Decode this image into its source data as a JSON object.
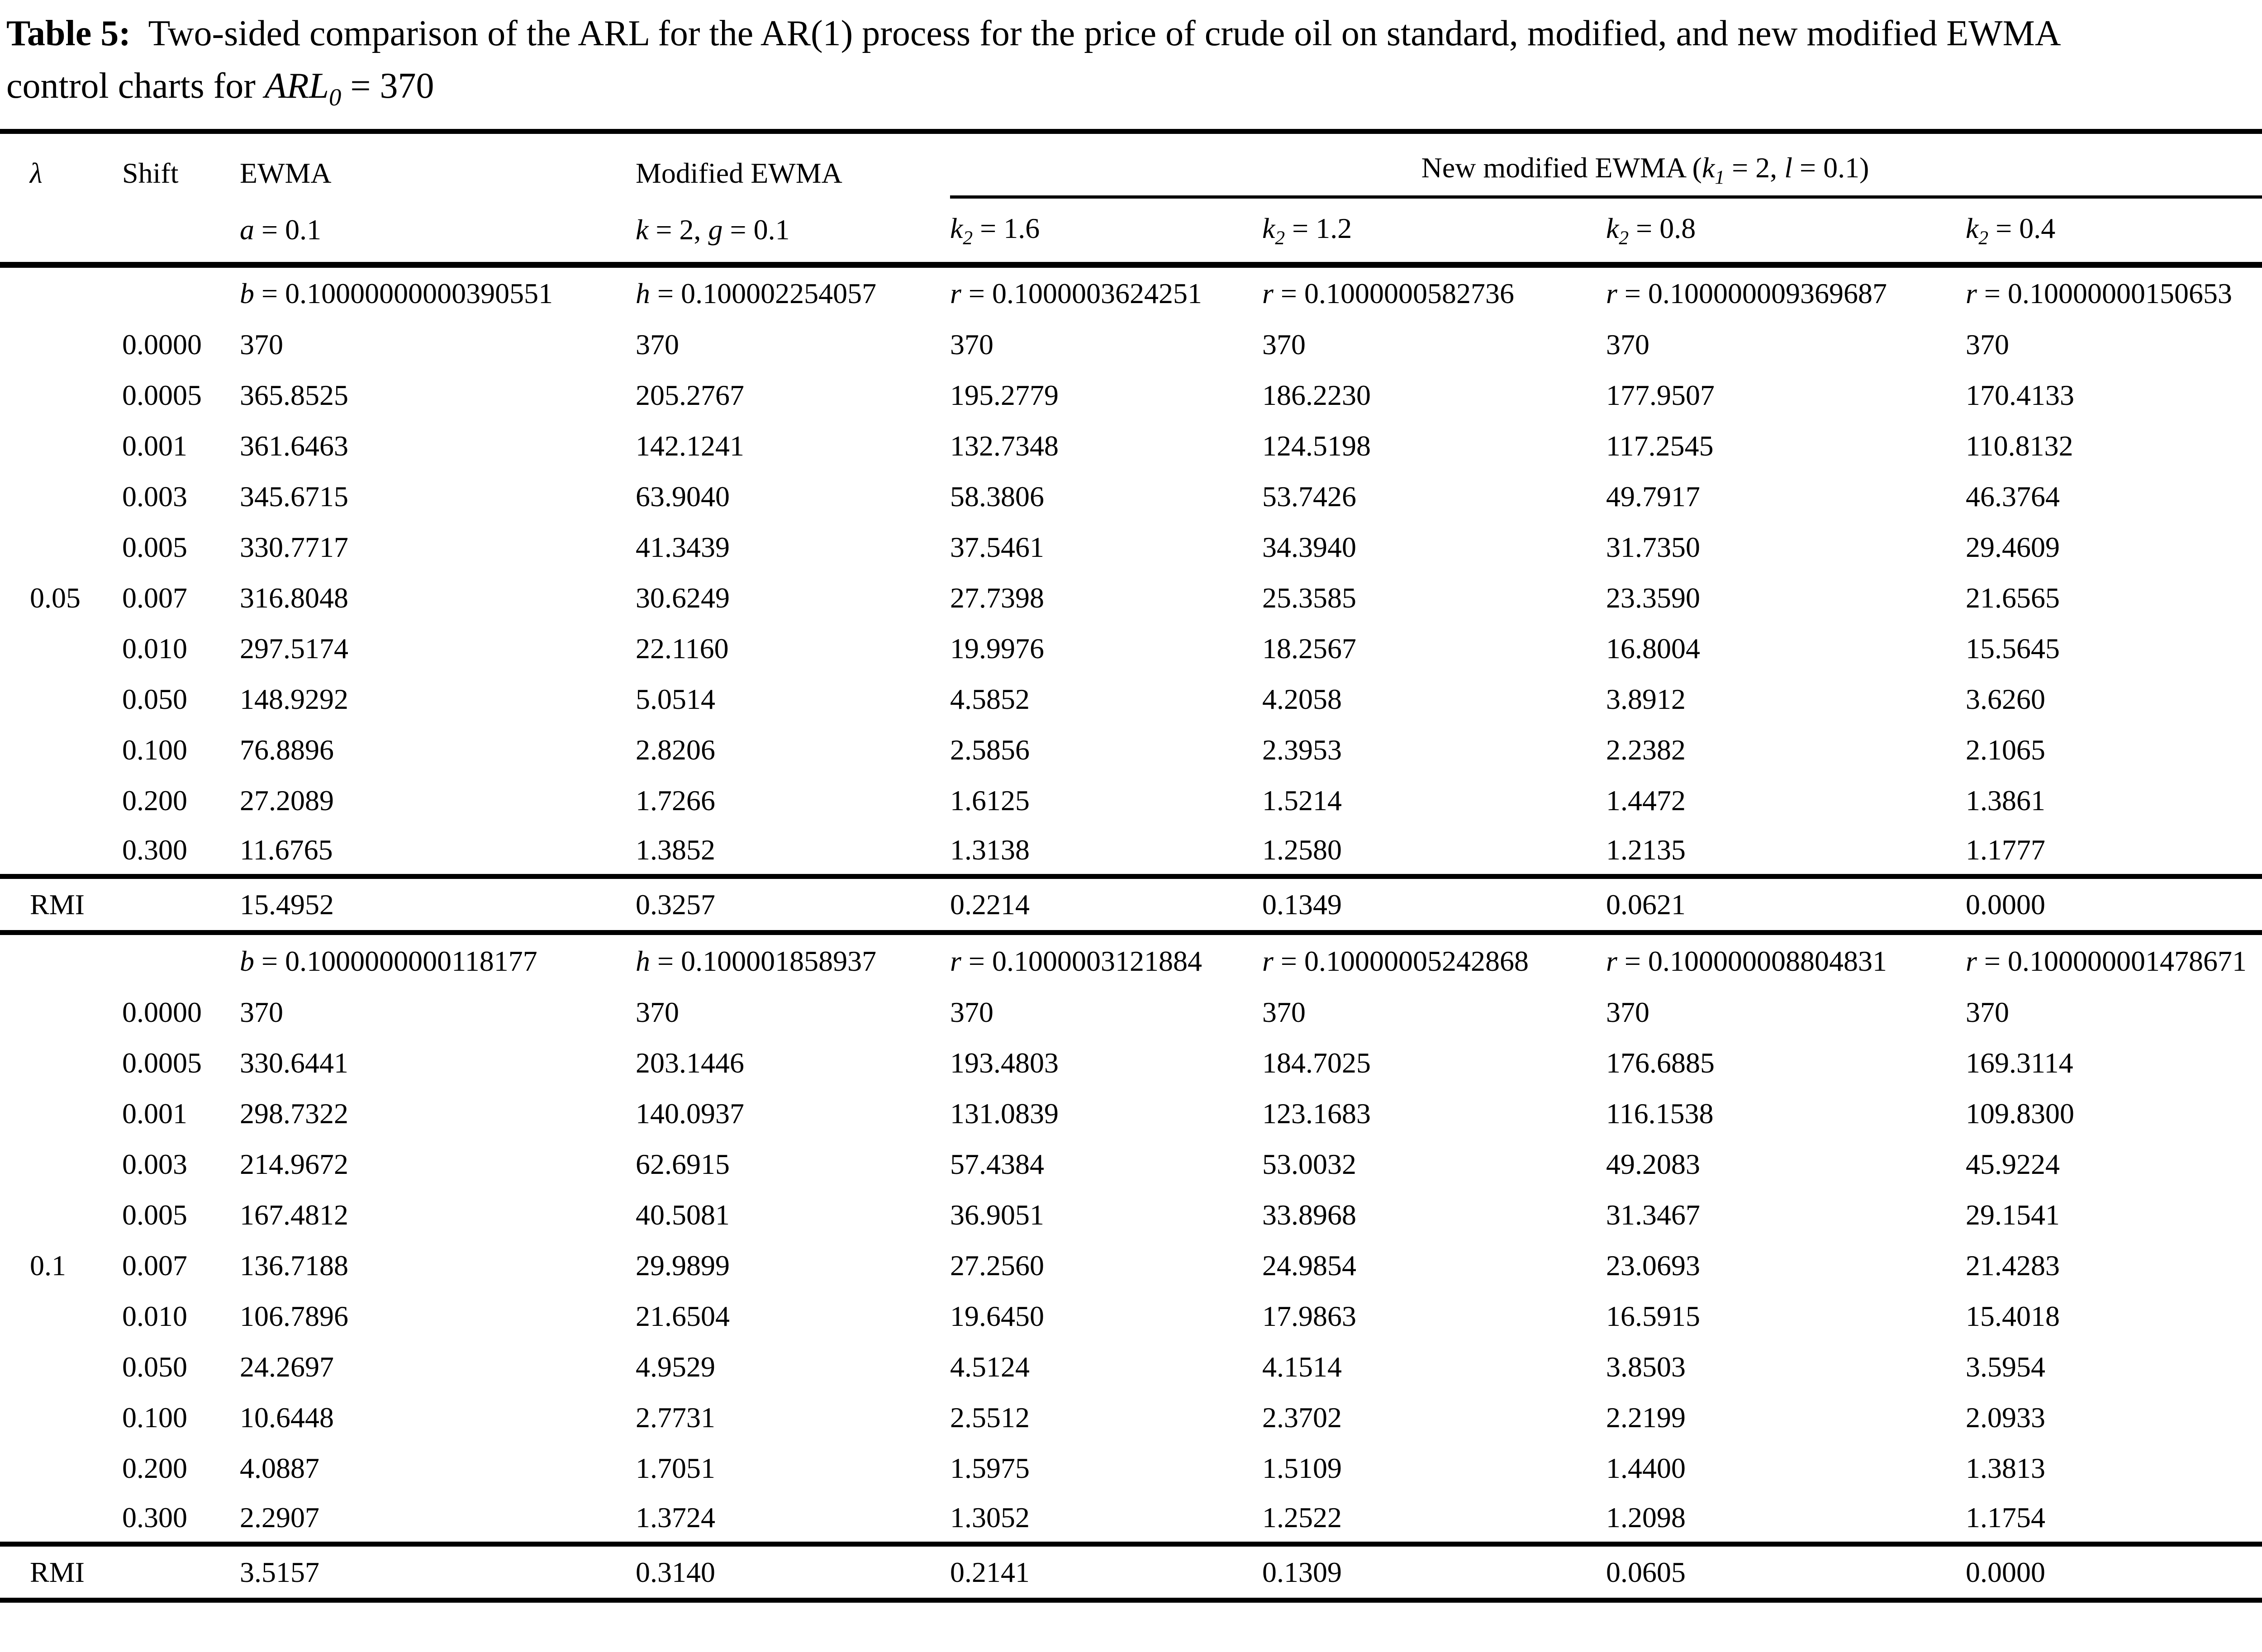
{
  "title": {
    "segments": [
      {
        "t": "Table 5:",
        "b": true
      },
      {
        "t": "  Two-sided comparison of the ARL for the AR(1) process for the price of crude oil on standard, modified, and new modified EWMA"
      },
      {
        "br": true
      },
      {
        "t": "control charts for "
      },
      {
        "t": "ARL",
        "i": true
      },
      {
        "t": "0",
        "i": true,
        "sub": true
      },
      {
        "t": " = 370"
      }
    ]
  },
  "header": {
    "lambda": [
      {
        "t": "λ",
        "i": true
      }
    ],
    "shift": "Shift",
    "ewma": "EWMA",
    "modified": "Modified EWMA",
    "new_modified": [
      {
        "t": "New modified EWMA ("
      },
      {
        "t": "k",
        "i": true
      },
      {
        "t": "1",
        "i": true,
        "sub": true
      },
      {
        "t": " = 2, "
      },
      {
        "t": "l",
        "i": true
      },
      {
        "t": " = 0.1)"
      }
    ],
    "sub": {
      "a": [
        {
          "t": "a",
          "i": true
        },
        {
          "t": " = 0.1"
        }
      ],
      "kg": [
        {
          "t": "k",
          "i": true
        },
        {
          "t": " = 2, "
        },
        {
          "t": "g",
          "i": true
        },
        {
          "t": " = 0.1"
        }
      ],
      "k2_16": [
        {
          "t": "k",
          "i": true
        },
        {
          "t": "2",
          "i": true,
          "sub": true
        },
        {
          "t": " = 1.6"
        }
      ],
      "k2_12": [
        {
          "t": "k",
          "i": true
        },
        {
          "t": "2",
          "i": true,
          "sub": true
        },
        {
          "t": " = 1.2"
        }
      ],
      "k2_08": [
        {
          "t": "k",
          "i": true
        },
        {
          "t": "2",
          "i": true,
          "sub": true
        },
        {
          "t": " = 0.8"
        }
      ],
      "k2_04": [
        {
          "t": "k",
          "i": true
        },
        {
          "t": "2",
          "i": true,
          "sub": true
        },
        {
          "t": " = 0.4"
        }
      ]
    }
  },
  "blocks": [
    {
      "lambda_value": "0.05",
      "params": [
        [
          {
            "t": "b",
            "i": true
          },
          {
            "t": " = 0.10000000000390551"
          }
        ],
        [
          {
            "t": "h",
            "i": true
          },
          {
            "t": " = 0.100002254057"
          }
        ],
        [
          {
            "t": "r",
            "i": true
          },
          {
            "t": " = 0.1000003624251"
          }
        ],
        [
          {
            "t": "r",
            "i": true
          },
          {
            "t": " = 0.1000000582736"
          }
        ],
        [
          {
            "t": "r",
            "i": true
          },
          {
            "t": " = 0.100000009369687"
          }
        ],
        [
          {
            "t": "r",
            "i": true
          },
          {
            "t": " = 0.10000000150653"
          }
        ]
      ],
      "rows": [
        {
          "lambda": "",
          "shift": "0.0000",
          "values": [
            "370",
            "370",
            "370",
            "370",
            "370",
            "370"
          ]
        },
        {
          "lambda": "",
          "shift": "0.0005",
          "values": [
            "365.8525",
            "205.2767",
            "195.2779",
            "186.2230",
            "177.9507",
            "170.4133"
          ]
        },
        {
          "lambda": "",
          "shift": "0.001",
          "values": [
            "361.6463",
            "142.1241",
            "132.7348",
            "124.5198",
            "117.2545",
            "110.8132"
          ]
        },
        {
          "lambda": "",
          "shift": "0.003",
          "values": [
            "345.6715",
            "63.9040",
            "58.3806",
            "53.7426",
            "49.7917",
            "46.3764"
          ]
        },
        {
          "lambda": "",
          "shift": "0.005",
          "values": [
            "330.7717",
            "41.3439",
            "37.5461",
            "34.3940",
            "31.7350",
            "29.4609"
          ]
        },
        {
          "lambda": "0.05",
          "shift": "0.007",
          "values": [
            "316.8048",
            "30.6249",
            "27.7398",
            "25.3585",
            "23.3590",
            "21.6565"
          ]
        },
        {
          "lambda": "",
          "shift": "0.010",
          "values": [
            "297.5174",
            "22.1160",
            "19.9976",
            "18.2567",
            "16.8004",
            "15.5645"
          ]
        },
        {
          "lambda": "",
          "shift": "0.050",
          "values": [
            "148.9292",
            "5.0514",
            "4.5852",
            "4.2058",
            "3.8912",
            "3.6260"
          ]
        },
        {
          "lambda": "",
          "shift": "0.100",
          "values": [
            "76.8896",
            "2.8206",
            "2.5856",
            "2.3953",
            "2.2382",
            "2.1065"
          ]
        },
        {
          "lambda": "",
          "shift": "0.200",
          "values": [
            "27.2089",
            "1.7266",
            "1.6125",
            "1.5214",
            "1.4472",
            "1.3861"
          ]
        },
        {
          "lambda": "",
          "shift": "0.300",
          "values": [
            "11.6765",
            "1.3852",
            "1.3138",
            "1.2580",
            "1.2135",
            "1.1777"
          ]
        }
      ],
      "rmi": {
        "label": "RMI",
        "values": [
          "15.4952",
          "0.3257",
          "0.2214",
          "0.1349",
          "0.0621",
          "0.0000"
        ]
      }
    },
    {
      "lambda_value": "0.1",
      "params": [
        [
          {
            "t": "b",
            "i": true
          },
          {
            "t": " = 0.1000000000118177"
          }
        ],
        [
          {
            "t": "h",
            "i": true
          },
          {
            "t": " = 0.100001858937"
          }
        ],
        [
          {
            "t": "r",
            "i": true
          },
          {
            "t": " = 0.1000003121884"
          }
        ],
        [
          {
            "t": "r",
            "i": true
          },
          {
            "t": " = 0.10000005242868"
          }
        ],
        [
          {
            "t": "r",
            "i": true
          },
          {
            "t": " = 0.100000008804831"
          }
        ],
        [
          {
            "t": "r",
            "i": true
          },
          {
            "t": " = 0.100000001478671"
          }
        ]
      ],
      "rows": [
        {
          "lambda": "",
          "shift": "0.0000",
          "values": [
            "370",
            "370",
            "370",
            "370",
            "370",
            "370"
          ]
        },
        {
          "lambda": "",
          "shift": "0.0005",
          "values": [
            "330.6441",
            "203.1446",
            "193.4803",
            "184.7025",
            "176.6885",
            "169.3114"
          ]
        },
        {
          "lambda": "",
          "shift": "0.001",
          "values": [
            "298.7322",
            "140.0937",
            "131.0839",
            "123.1683",
            "116.1538",
            "109.8300"
          ]
        },
        {
          "lambda": "",
          "shift": "0.003",
          "values": [
            "214.9672",
            "62.6915",
            "57.4384",
            "53.0032",
            "49.2083",
            "45.9224"
          ]
        },
        {
          "lambda": "",
          "shift": "0.005",
          "values": [
            "167.4812",
            "40.5081",
            "36.9051",
            "33.8968",
            "31.3467",
            "29.1541"
          ]
        },
        {
          "lambda": "0.1",
          "shift": "0.007",
          "values": [
            "136.7188",
            "29.9899",
            "27.2560",
            "24.9854",
            "23.0693",
            "21.4283"
          ]
        },
        {
          "lambda": "",
          "shift": "0.010",
          "values": [
            "106.7896",
            "21.6504",
            "19.6450",
            "17.9863",
            "16.5915",
            "15.4018"
          ]
        },
        {
          "lambda": "",
          "shift": "0.050",
          "values": [
            "24.2697",
            "4.9529",
            "4.5124",
            "4.1514",
            "3.8503",
            "3.5954"
          ]
        },
        {
          "lambda": "",
          "shift": "0.100",
          "values": [
            "10.6448",
            "2.7731",
            "2.5512",
            "2.3702",
            "2.2199",
            "2.0933"
          ]
        },
        {
          "lambda": "",
          "shift": "0.200",
          "values": [
            "4.0887",
            "1.7051",
            "1.5975",
            "1.5109",
            "1.4400",
            "1.3813"
          ]
        },
        {
          "lambda": "",
          "shift": "0.300",
          "values": [
            "2.2907",
            "1.3724",
            "1.3052",
            "1.2522",
            "1.2098",
            "1.1754"
          ]
        }
      ],
      "rmi": {
        "label": "RMI",
        "values": [
          "3.5157",
          "0.3140",
          "0.2141",
          "0.1309",
          "0.0605",
          "0.0000"
        ]
      }
    }
  ]
}
